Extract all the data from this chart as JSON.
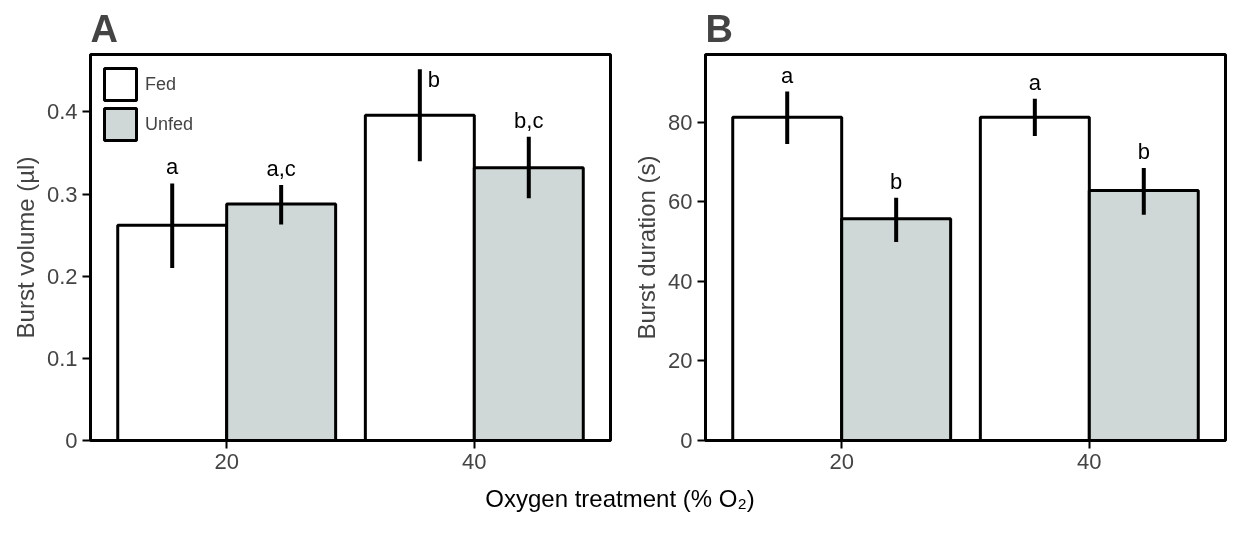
{
  "chart_data": [
    {
      "type": "bar",
      "title": "A",
      "ylabel": "Burst volume (µl)",
      "xlabel": "Oxygen treatment (% O₂)",
      "categories": [
        "20",
        "40"
      ],
      "series": [
        {
          "name": "Fed",
          "color": "#ffffff",
          "values": [
            0.262,
            0.396
          ],
          "errors": [
            [
              0.21,
              0.313
            ],
            [
              0.34,
              0.452
            ]
          ]
        },
        {
          "name": "Unfed",
          "color": "#cfd8d6",
          "values": [
            0.288,
            0.332
          ],
          "errors": [
            [
              0.263,
              0.311
            ],
            [
              0.295,
              0.37
            ]
          ]
        }
      ],
      "annotations": [
        "a",
        "b",
        "a,c",
        "b,c"
      ],
      "ylim": [
        0,
        0.47
      ],
      "yticks": [
        0,
        0.1,
        0.2,
        0.3,
        0.4
      ],
      "grid": false,
      "legend": "top left"
    },
    {
      "type": "bar",
      "title": "B",
      "ylabel": "Burst duration (s)",
      "categories": [
        "20",
        "40"
      ],
      "series": [
        {
          "color": "#ffffff",
          "values": [
            81.2,
            81.2
          ],
          "errors": [
            [
              74.5,
              87.7
            ],
            [
              76.5,
              85.9
            ]
          ]
        },
        {
          "color": "#cfd8d6",
          "values": [
            55.7,
            62.8
          ],
          "errors": [
            [
              49.9,
              61.0
            ],
            [
              56.7,
              68.5
            ]
          ]
        }
      ],
      "annotations": [
        "a",
        "a",
        "b",
        "b"
      ],
      "ylim": [
        0,
        97
      ],
      "yticks": [
        0,
        20,
        40,
        60,
        80
      ],
      "grid": false
    }
  ]
}
